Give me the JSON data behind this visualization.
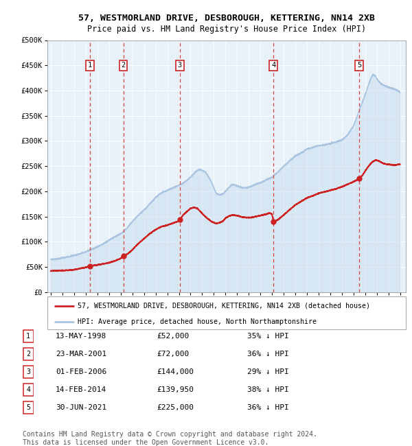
{
  "title": "57, WESTMORLAND DRIVE, DESBOROUGH, KETTERING, NN14 2XB",
  "subtitle": "Price paid vs. HM Land Registry's House Price Index (HPI)",
  "ylim": [
    0,
    500000
  ],
  "yticks": [
    0,
    50000,
    100000,
    150000,
    200000,
    250000,
    300000,
    350000,
    400000,
    450000,
    500000
  ],
  "ytick_labels": [
    "£0",
    "£50K",
    "£100K",
    "£150K",
    "£200K",
    "£250K",
    "£300K",
    "£350K",
    "£400K",
    "£450K",
    "£500K"
  ],
  "xlim_start": 1994.7,
  "xlim_end": 2025.5,
  "hpi_color": "#a8c4e0",
  "hpi_fill_color": "#c8ddf0",
  "property_color": "#cc2222",
  "background_color": "#e8f0f8",
  "sale_dates_decimal": [
    1998.37,
    2001.23,
    2006.08,
    2014.12,
    2021.5
  ],
  "sale_prices": [
    52000,
    72000,
    144000,
    139950,
    225000
  ],
  "sale_labels": [
    "1",
    "2",
    "3",
    "4",
    "5"
  ],
  "sale_date_strings": [
    "13-MAY-1998",
    "23-MAR-2001",
    "01-FEB-2006",
    "14-FEB-2014",
    "30-JUN-2021"
  ],
  "sale_price_strings": [
    "£52,000",
    "£72,000",
    "£144,000",
    "£139,950",
    "£225,000"
  ],
  "sale_pct_strings": [
    "35% ↓ HPI",
    "36% ↓ HPI",
    "29% ↓ HPI",
    "38% ↓ HPI",
    "36% ↓ HPI"
  ],
  "legend_property_label": "57, WESTMORLAND DRIVE, DESBOROUGH, KETTERING, NN14 2XB (detached house)",
  "legend_hpi_label": "HPI: Average price, detached house, North Northamptonshire",
  "footer": "Contains HM Land Registry data © Crown copyright and database right 2024.\nThis data is licensed under the Open Government Licence v3.0.",
  "hpi_keypoints": [
    [
      1995.0,
      65000
    ],
    [
      1995.5,
      66000
    ],
    [
      1996.0,
      68000
    ],
    [
      1996.5,
      70000
    ],
    [
      1997.0,
      73000
    ],
    [
      1997.5,
      76000
    ],
    [
      1998.0,
      80000
    ],
    [
      1998.5,
      85000
    ],
    [
      1999.0,
      90000
    ],
    [
      1999.5,
      96000
    ],
    [
      2000.0,
      103000
    ],
    [
      2000.5,
      110000
    ],
    [
      2001.0,
      116000
    ],
    [
      2001.5,
      126000
    ],
    [
      2002.0,
      140000
    ],
    [
      2002.5,
      152000
    ],
    [
      2003.0,
      163000
    ],
    [
      2003.5,
      175000
    ],
    [
      2004.0,
      188000
    ],
    [
      2004.5,
      197000
    ],
    [
      2005.0,
      202000
    ],
    [
      2005.5,
      207000
    ],
    [
      2006.0,
      212000
    ],
    [
      2006.5,
      218000
    ],
    [
      2007.0,
      228000
    ],
    [
      2007.5,
      240000
    ],
    [
      2007.8,
      244000
    ],
    [
      2008.3,
      238000
    ],
    [
      2008.8,
      218000
    ],
    [
      2009.2,
      196000
    ],
    [
      2009.5,
      193000
    ],
    [
      2009.8,
      195000
    ],
    [
      2010.0,
      200000
    ],
    [
      2010.3,
      208000
    ],
    [
      2010.6,
      214000
    ],
    [
      2011.0,
      211000
    ],
    [
      2011.3,
      208000
    ],
    [
      2011.6,
      207000
    ],
    [
      2012.0,
      208000
    ],
    [
      2012.3,
      211000
    ],
    [
      2012.6,
      214000
    ],
    [
      2013.0,
      217000
    ],
    [
      2013.3,
      220000
    ],
    [
      2013.6,
      224000
    ],
    [
      2014.0,
      228000
    ],
    [
      2014.5,
      238000
    ],
    [
      2015.0,
      250000
    ],
    [
      2015.5,
      260000
    ],
    [
      2016.0,
      270000
    ],
    [
      2016.5,
      276000
    ],
    [
      2017.0,
      284000
    ],
    [
      2017.5,
      287000
    ],
    [
      2018.0,
      291000
    ],
    [
      2018.5,
      292000
    ],
    [
      2019.0,
      295000
    ],
    [
      2019.5,
      298000
    ],
    [
      2020.0,
      302000
    ],
    [
      2020.5,
      312000
    ],
    [
      2021.0,
      330000
    ],
    [
      2021.3,
      348000
    ],
    [
      2021.6,
      368000
    ],
    [
      2021.9,
      385000
    ],
    [
      2022.1,
      398000
    ],
    [
      2022.3,
      412000
    ],
    [
      2022.5,
      425000
    ],
    [
      2022.7,
      432000
    ],
    [
      2022.9,
      428000
    ],
    [
      2023.1,
      420000
    ],
    [
      2023.3,
      415000
    ],
    [
      2023.6,
      410000
    ],
    [
      2023.9,
      408000
    ],
    [
      2024.2,
      405000
    ],
    [
      2024.5,
      403000
    ],
    [
      2024.8,
      400000
    ],
    [
      2025.0,
      396000
    ]
  ],
  "prop_keypoints": [
    [
      1995.0,
      42000
    ],
    [
      1995.5,
      42500
    ],
    [
      1996.0,
      43000
    ],
    [
      1996.5,
      43500
    ],
    [
      1997.0,
      44500
    ],
    [
      1997.5,
      47000
    ],
    [
      1998.0,
      49000
    ],
    [
      1998.37,
      52000
    ],
    [
      1998.7,
      53000
    ],
    [
      1999.0,
      54000
    ],
    [
      1999.5,
      56000
    ],
    [
      2000.0,
      58500
    ],
    [
      2000.5,
      62000
    ],
    [
      2001.0,
      67000
    ],
    [
      2001.23,
      72000
    ],
    [
      2001.6,
      76000
    ],
    [
      2002.0,
      84000
    ],
    [
      2002.5,
      96000
    ],
    [
      2003.0,
      106000
    ],
    [
      2003.5,
      116000
    ],
    [
      2004.0,
      124000
    ],
    [
      2004.5,
      130000
    ],
    [
      2005.0,
      133000
    ],
    [
      2005.5,
      137000
    ],
    [
      2006.0,
      141000
    ],
    [
      2006.08,
      144000
    ],
    [
      2006.4,
      154000
    ],
    [
      2006.8,
      162000
    ],
    [
      2007.0,
      166000
    ],
    [
      2007.3,
      168000
    ],
    [
      2007.6,
      166000
    ],
    [
      2008.0,
      156000
    ],
    [
      2008.4,
      147000
    ],
    [
      2008.8,
      140000
    ],
    [
      2009.2,
      136000
    ],
    [
      2009.5,
      138000
    ],
    [
      2009.8,
      141000
    ],
    [
      2010.0,
      147000
    ],
    [
      2010.3,
      151000
    ],
    [
      2010.6,
      153000
    ],
    [
      2011.0,
      152000
    ],
    [
      2011.4,
      149000
    ],
    [
      2011.8,
      148000
    ],
    [
      2012.2,
      148000
    ],
    [
      2012.6,
      150000
    ],
    [
      2013.0,
      152000
    ],
    [
      2013.4,
      154000
    ],
    [
      2013.8,
      157000
    ],
    [
      2014.0,
      155000
    ],
    [
      2014.12,
      139950
    ],
    [
      2014.3,
      141000
    ],
    [
      2014.6,
      145000
    ],
    [
      2015.0,
      153000
    ],
    [
      2015.5,
      163000
    ],
    [
      2016.0,
      173000
    ],
    [
      2016.5,
      180000
    ],
    [
      2017.0,
      187000
    ],
    [
      2017.5,
      191000
    ],
    [
      2018.0,
      196000
    ],
    [
      2018.5,
      199000
    ],
    [
      2019.0,
      202000
    ],
    [
      2019.5,
      205000
    ],
    [
      2020.0,
      209000
    ],
    [
      2020.5,
      214000
    ],
    [
      2021.0,
      219000
    ],
    [
      2021.5,
      225000
    ],
    [
      2021.8,
      233000
    ],
    [
      2022.0,
      240000
    ],
    [
      2022.3,
      250000
    ],
    [
      2022.6,
      258000
    ],
    [
      2022.9,
      262000
    ],
    [
      2023.2,
      260000
    ],
    [
      2023.5,
      256000
    ],
    [
      2023.8,
      254000
    ],
    [
      2024.2,
      253000
    ],
    [
      2024.6,
      252000
    ],
    [
      2025.0,
      254000
    ]
  ]
}
